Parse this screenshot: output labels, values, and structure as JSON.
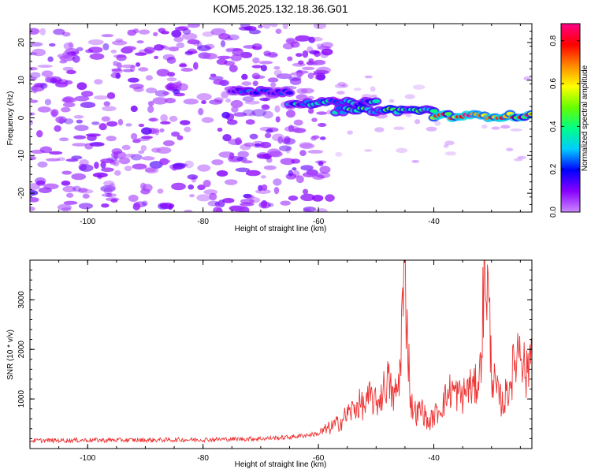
{
  "figure": {
    "title": "KOM5.2025.132.18.36.G01"
  },
  "chart_data": [
    {
      "type": "heatmap",
      "xlabel": "Height of straight line (km)",
      "ylabel": "Frequency (Hz)",
      "xlim": [
        -110,
        -23
      ],
      "ylim": [
        -25,
        25
      ],
      "x_ticks": [
        -100,
        -80,
        -60,
        -40
      ],
      "y_ticks": [
        -20,
        -10,
        0,
        10,
        20
      ],
      "colorbar": {
        "label": "Normalized spectral amplitude",
        "range": [
          0,
          0.88
        ],
        "ticks": [
          0.0,
          0.2,
          0.4,
          0.6,
          0.8
        ],
        "colormap": [
          "#cc88ff",
          "#8800ff",
          "#0000ff",
          "#00ccff",
          "#00ff88",
          "#66ff00",
          "#ffff00",
          "#ff8800",
          "#ff0000",
          "#ff0088"
        ]
      },
      "noise_region": {
        "x": [
          -110,
          -58
        ],
        "frequency": [
          -25,
          25
        ],
        "amplitude": [
          0.02,
          0.1
        ]
      },
      "features": [
        {
          "x_start": -75,
          "x_end": -65,
          "frequency": 7,
          "amplitude": 0.25
        },
        {
          "x_start": -65,
          "x_end": -50,
          "frequency": 4,
          "amplitude": 0.35
        },
        {
          "x_start": -57,
          "x_end": -40,
          "frequency": 2,
          "amplitude": 0.45
        },
        {
          "x_start": -40,
          "x_end": -23,
          "frequency": 0.5,
          "amplitude": 0.85
        }
      ]
    },
    {
      "type": "line",
      "xlabel": "Height of straight line (km)",
      "ylabel": "SNR (10 * v/v)",
      "xlim": [
        -110,
        -23
      ],
      "ylim": [
        0,
        3800
      ],
      "x_ticks": [
        -100,
        -80,
        -60,
        -40
      ],
      "y_ticks": [
        1000,
        2000,
        3000
      ],
      "series": [
        {
          "color": "#ee3333",
          "x": [
            -110,
            -100,
            -90,
            -80,
            -70,
            -65,
            -60,
            -58,
            -56,
            -55,
            -54,
            -53,
            -52,
            -51,
            -50,
            -49,
            -48,
            -47,
            -46,
            -45.5,
            -45,
            -44.5,
            -44,
            -43,
            -42,
            -41,
            -40,
            -39,
            -38,
            -37,
            -36,
            -35,
            -34,
            -33,
            -32,
            -31.5,
            -31,
            -30.5,
            -30,
            -29.5,
            -29,
            -28,
            -27,
            -26,
            -25,
            -24,
            -23
          ],
          "y": [
            160,
            170,
            170,
            180,
            200,
            230,
            300,
            420,
            550,
            700,
            780,
            900,
            850,
            1050,
            900,
            1100,
            1400,
            1000,
            1300,
            2700,
            3500,
            2200,
            900,
            700,
            800,
            500,
            650,
            800,
            1000,
            1200,
            1100,
            1050,
            1250,
            1200,
            1500,
            2800,
            3700,
            2900,
            1600,
            1300,
            1100,
            900,
            1250,
            1700,
            2250,
            1400,
            2150
          ]
        }
      ]
    }
  ]
}
